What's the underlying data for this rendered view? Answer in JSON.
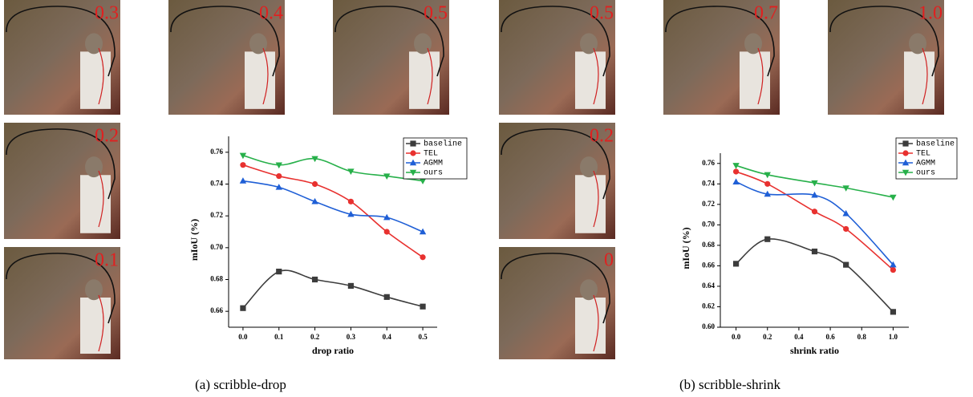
{
  "figure": {
    "captions": [
      "(a) scribble-drop",
      "(b) scribble-shrink"
    ],
    "image_labels": {
      "drop": [
        "0.3",
        "0.4",
        "0.5",
        "0.2",
        "0.1"
      ],
      "shrink": [
        "0.5",
        "0.7",
        "1.0",
        "0.2",
        "0"
      ]
    }
  },
  "chart_data": [
    {
      "type": "line",
      "x_label": "drop ratio",
      "y_label": "mIoU (%)",
      "x": [
        0,
        0.1,
        0.2,
        0.3,
        0.4,
        0.5
      ],
      "xlim": [
        -0.04,
        0.54
      ],
      "xticks": [
        {
          "value": 0,
          "label": "0.0"
        },
        0.1,
        0.2,
        0.3,
        0.4,
        0.5
      ],
      "ylim": [
        0.65,
        0.77
      ],
      "yticks": [
        0.66,
        0.68,
        {
          "value": 0.7,
          "label": "0.70"
        },
        0.72,
        0.74,
        0.76
      ],
      "legend": "upper right",
      "series": [
        {
          "name": "baseline",
          "color": "#3c3c3c",
          "marker": "square",
          "values": [
            0.662,
            0.685,
            0.68,
            0.676,
            0.669,
            0.663
          ]
        },
        {
          "name": "TEL",
          "color": "#e8312f",
          "marker": "circle",
          "values": [
            0.752,
            0.745,
            0.74,
            0.729,
            0.71,
            0.694
          ]
        },
        {
          "name": "AGMM",
          "color": "#1f5fd6",
          "marker": "triangle-up",
          "values": [
            0.742,
            0.738,
            0.729,
            0.721,
            0.719,
            0.71
          ]
        },
        {
          "name": "ours",
          "color": "#27b04a",
          "marker": "triangle-down",
          "values": [
            0.758,
            0.752,
            0.756,
            0.748,
            0.745,
            0.742
          ]
        }
      ]
    },
    {
      "type": "line",
      "x_label": "shrink ratio",
      "y_label": "mIoU (%)",
      "x": [
        0,
        0.2,
        0.5,
        0.7,
        1.0
      ],
      "xlim": [
        -0.1,
        1.1
      ],
      "xticks": [
        {
          "value": 0,
          "label": "0.0"
        },
        0.2,
        0.4,
        0.6,
        0.8,
        {
          "value": 1,
          "label": "1.0"
        }
      ],
      "ylim": [
        0.6,
        0.77
      ],
      "yticks": [
        {
          "value": 0.6,
          "label": "0.60"
        },
        0.62,
        0.64,
        0.66,
        0.68,
        {
          "value": 0.7,
          "label": "0.70"
        },
        0.72,
        0.74,
        0.76
      ],
      "legend": "upper right",
      "series": [
        {
          "name": "baseline",
          "color": "#3c3c3c",
          "marker": "square",
          "values": [
            0.662,
            0.686,
            0.674,
            0.661,
            0.615
          ]
        },
        {
          "name": "TEL",
          "color": "#e8312f",
          "marker": "circle",
          "values": [
            0.752,
            0.74,
            0.713,
            0.696,
            0.656
          ]
        },
        {
          "name": "AGMM",
          "color": "#1f5fd6",
          "marker": "triangle-up",
          "values": [
            0.742,
            0.73,
            0.729,
            0.711,
            0.661
          ]
        },
        {
          "name": "ours",
          "color": "#27b04a",
          "marker": "triangle-down",
          "values": [
            0.758,
            0.749,
            0.741,
            0.736,
            0.727
          ]
        }
      ]
    }
  ]
}
